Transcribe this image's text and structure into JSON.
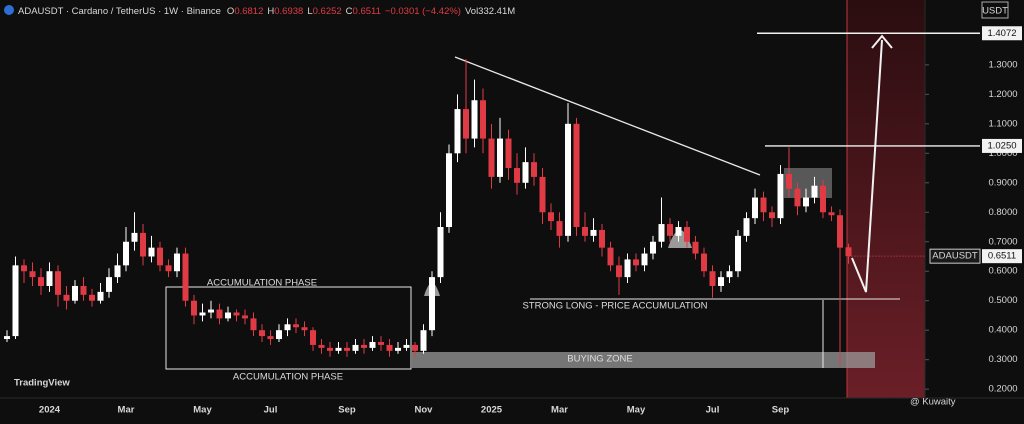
{
  "chart_data": {
    "type": "candlestick",
    "header": {
      "symbol": "ADAUSDT · Cardano / TetherUS · 1W · Binance",
      "ohlc_labels": [
        "O",
        "H",
        "L",
        "C"
      ],
      "change": "−0.0301 (−4.42%)",
      "volume": "Vol332.41M"
    },
    "y_unit": "USDT",
    "price_tag_label": "ADAUSDT",
    "logo": "TradingView",
    "watermark": "@ Kuwaity",
    "categories": [
      null,
      null,
      null,
      null,
      null,
      "2024",
      null,
      null,
      null,
      null,
      null,
      null,
      null,
      null,
      "Mar",
      null,
      null,
      null,
      null,
      null,
      null,
      null,
      null,
      "May",
      null,
      null,
      null,
      null,
      null,
      null,
      null,
      "Jul",
      null,
      null,
      null,
      null,
      null,
      null,
      null,
      null,
      "Sep",
      null,
      null,
      null,
      null,
      null,
      null,
      null,
      null,
      "Nov",
      null,
      null,
      null,
      null,
      null,
      null,
      null,
      "2025",
      null,
      null,
      null,
      null,
      null,
      null,
      null,
      "Mar",
      null,
      null,
      null,
      null,
      null,
      null,
      null,
      null,
      "May",
      null,
      null,
      null,
      null,
      null,
      null,
      null,
      null,
      "Jul",
      null,
      null,
      null,
      null,
      null,
      null,
      null,
      "Sep",
      null,
      null,
      null,
      null,
      null,
      null,
      null,
      null
    ],
    "series": [
      {
        "name": "ADAUSDT",
        "up_color": "#ffffff",
        "down_color": "#e03b45",
        "open": [
          0.37,
          0.38,
          0.62,
          0.6,
          0.58,
          0.55,
          0.6,
          0.52,
          0.5,
          0.55,
          0.52,
          0.5,
          0.53,
          0.58,
          0.62,
          0.7,
          0.73,
          0.65,
          0.68,
          0.62,
          0.6,
          0.66,
          0.5,
          0.45,
          0.46,
          0.47,
          0.44,
          0.46,
          0.45,
          0.44,
          0.4,
          0.38,
          0.37,
          0.4,
          0.42,
          0.41,
          0.4,
          0.35,
          0.34,
          0.33,
          0.34,
          0.33,
          0.35,
          0.34,
          0.36,
          0.35,
          0.33,
          0.34,
          0.35,
          0.33,
          0.4,
          0.58,
          0.75,
          1.0,
          1.15,
          1.05,
          1.18,
          1.05,
          0.92,
          1.05,
          0.95,
          0.9,
          0.97,
          0.92,
          0.8,
          0.77,
          0.72,
          1.1,
          0.75,
          0.72,
          0.74,
          0.68,
          0.62,
          0.58,
          0.64,
          0.62,
          0.66,
          0.7,
          0.76,
          0.72,
          0.75,
          0.7,
          0.66,
          0.6,
          0.55,
          0.58,
          0.6,
          0.72,
          0.78,
          0.85,
          0.8,
          0.78,
          0.93,
          0.88,
          0.82,
          0.85,
          0.89,
          0.8,
          0.79,
          0.6812
        ],
        "high": [
          0.4,
          0.65,
          0.64,
          0.63,
          0.61,
          0.63,
          0.62,
          0.55,
          0.57,
          0.58,
          0.54,
          0.56,
          0.61,
          0.66,
          0.75,
          0.8,
          0.76,
          0.72,
          0.7,
          0.64,
          0.68,
          0.68,
          0.52,
          0.49,
          0.5,
          0.49,
          0.48,
          0.47,
          0.47,
          0.46,
          0.42,
          0.4,
          0.42,
          0.44,
          0.44,
          0.43,
          0.41,
          0.37,
          0.36,
          0.36,
          0.36,
          0.37,
          0.37,
          0.38,
          0.38,
          0.37,
          0.36,
          0.37,
          0.36,
          0.42,
          0.6,
          0.8,
          1.03,
          1.2,
          1.32,
          1.25,
          1.22,
          1.1,
          1.12,
          1.08,
          1.0,
          1.02,
          1.0,
          0.95,
          0.83,
          0.8,
          1.17,
          1.12,
          0.8,
          0.78,
          0.76,
          0.7,
          0.65,
          0.66,
          0.66,
          0.68,
          0.72,
          0.85,
          0.78,
          0.77,
          0.77,
          0.72,
          0.68,
          0.62,
          0.6,
          0.62,
          0.74,
          0.8,
          0.88,
          0.87,
          0.82,
          0.96,
          1.02,
          0.9,
          0.88,
          0.92,
          0.91,
          0.82,
          0.81,
          0.6938
        ],
        "low": [
          0.36,
          0.37,
          0.56,
          0.55,
          0.52,
          0.53,
          0.48,
          0.47,
          0.49,
          0.5,
          0.48,
          0.49,
          0.51,
          0.56,
          0.6,
          0.67,
          0.62,
          0.63,
          0.6,
          0.58,
          0.58,
          0.48,
          0.42,
          0.43,
          0.44,
          0.42,
          0.43,
          0.43,
          0.42,
          0.38,
          0.36,
          0.35,
          0.36,
          0.38,
          0.39,
          0.38,
          0.33,
          0.32,
          0.31,
          0.32,
          0.31,
          0.32,
          0.32,
          0.33,
          0.33,
          0.31,
          0.32,
          0.33,
          0.31,
          0.32,
          0.38,
          0.56,
          0.73,
          0.97,
          1.0,
          1.02,
          1.0,
          0.88,
          0.9,
          0.91,
          0.86,
          0.88,
          0.89,
          0.76,
          0.74,
          0.68,
          0.7,
          0.72,
          0.7,
          0.7,
          0.65,
          0.6,
          0.52,
          0.56,
          0.6,
          0.6,
          0.64,
          0.68,
          0.7,
          0.7,
          0.68,
          0.64,
          0.58,
          0.51,
          0.53,
          0.56,
          0.58,
          0.7,
          0.76,
          0.77,
          0.75,
          0.76,
          0.85,
          0.79,
          0.8,
          0.83,
          0.78,
          0.77,
          0.28,
          0.6252
        ],
        "close": [
          0.38,
          0.62,
          0.6,
          0.58,
          0.55,
          0.6,
          0.52,
          0.5,
          0.55,
          0.52,
          0.5,
          0.53,
          0.58,
          0.62,
          0.7,
          0.73,
          0.65,
          0.68,
          0.62,
          0.6,
          0.66,
          0.5,
          0.45,
          0.46,
          0.47,
          0.44,
          0.46,
          0.45,
          0.44,
          0.4,
          0.38,
          0.37,
          0.4,
          0.42,
          0.41,
          0.4,
          0.35,
          0.34,
          0.33,
          0.34,
          0.33,
          0.35,
          0.34,
          0.36,
          0.35,
          0.33,
          0.34,
          0.35,
          0.33,
          0.4,
          0.58,
          0.75,
          1.0,
          1.15,
          1.05,
          1.18,
          1.05,
          0.92,
          1.05,
          0.95,
          0.9,
          0.97,
          0.92,
          0.8,
          0.77,
          0.72,
          1.1,
          0.75,
          0.72,
          0.74,
          0.68,
          0.62,
          0.58,
          0.64,
          0.62,
          0.66,
          0.7,
          0.76,
          0.72,
          0.75,
          0.7,
          0.66,
          0.6,
          0.55,
          0.58,
          0.6,
          0.72,
          0.78,
          0.85,
          0.8,
          0.78,
          0.93,
          0.88,
          0.82,
          0.85,
          0.89,
          0.8,
          0.79,
          0.68,
          0.6511
        ]
      }
    ],
    "ylim": [
      0.17,
      1.52
    ],
    "yticks": [
      {
        "value": 0.2,
        "label": "0.2000"
      },
      {
        "value": 0.3,
        "label": "0.3000"
      },
      {
        "value": 0.4,
        "label": "0.4000"
      },
      {
        "value": 0.5,
        "label": "0.5000"
      },
      {
        "value": 0.6,
        "label": "0.6000"
      },
      {
        "value": 0.7,
        "label": "0.7000"
      },
      {
        "value": 0.8,
        "label": "0.8000"
      },
      {
        "value": 0.9,
        "label": "0.9000"
      },
      {
        "value": 1.0,
        "label": "1.0000"
      },
      {
        "value": 1.1,
        "label": "1.1000"
      },
      {
        "value": 1.2,
        "label": "1.2000"
      },
      {
        "value": 1.3,
        "label": "1.3000"
      }
    ],
    "levels": [
      1.4072,
      {
        "value": 1.025,
        "label": "1.0250"
      }
    ],
    "annotations": [
      {
        "text": "ACCUMULATION PHASE"
      },
      {
        "text": "BUYING ZONE"
      },
      {
        "text": "STRONG LONG - PRICE ACCUMULATION"
      },
      {
        "text": "ACCUMULATION PHASE"
      }
    ]
  }
}
